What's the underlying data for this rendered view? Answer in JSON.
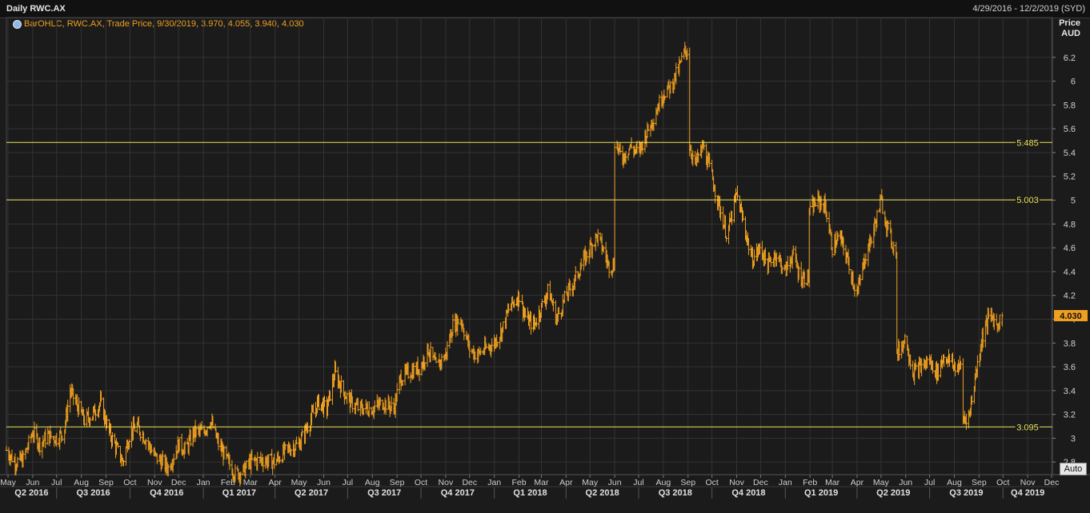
{
  "header": {
    "title": "Daily RWC.AX",
    "date_range": "4/29/2016 - 12/2/2019 (SYD)"
  },
  "legend": {
    "text": "BarOHLC, RWC.AX, Trade Price, 9/30/2019, 3.970, 4.055, 3.940, 4.030",
    "icon": "circle-icon"
  },
  "axis": {
    "title_line1": "Price",
    "title_line2": "AUD"
  },
  "auto_button": "Auto",
  "colors": {
    "background": "#1b1b1b",
    "series": "#f0a020",
    "levels": "#e8e25a",
    "grid": "#333333",
    "last_price_tag": "#f0a020"
  },
  "chart_data": {
    "type": "bar",
    "style": "OHLC",
    "symbol": "RWC.AX",
    "x_range": [
      "2016-04-29",
      "2019-12-02"
    ],
    "ylim": [
      2.6,
      6.4
    ],
    "y_ticks": [
      2.8,
      3,
      3.2,
      3.4,
      3.6,
      3.8,
      4,
      4.2,
      4.4,
      4.6,
      4.8,
      5,
      5.2,
      5.4,
      5.6,
      5.8,
      6,
      6.2
    ],
    "grid": true,
    "last_price": {
      "date": "2019-09-30",
      "open": 3.97,
      "high": 4.055,
      "low": 3.94,
      "close": 4.03,
      "label": "4.030"
    },
    "horizontal_lines": [
      {
        "value": 5.485,
        "label": "5.485"
      },
      {
        "value": 5.003,
        "label": "5.003"
      },
      {
        "value": 3.095,
        "label": "3.095"
      }
    ],
    "month_labels": [
      {
        "date": "2016-05-01",
        "label": "May"
      },
      {
        "date": "2016-06-01",
        "label": "Jun"
      },
      {
        "date": "2016-07-01",
        "label": "Jul"
      },
      {
        "date": "2016-08-01",
        "label": "Aug"
      },
      {
        "date": "2016-09-01",
        "label": "Sep"
      },
      {
        "date": "2016-10-01",
        "label": "Oct"
      },
      {
        "date": "2016-11-01",
        "label": "Nov"
      },
      {
        "date": "2016-12-01",
        "label": "Dec"
      },
      {
        "date": "2017-01-01",
        "label": "Jan"
      },
      {
        "date": "2017-02-01",
        "label": "Feb"
      },
      {
        "date": "2017-03-01",
        "label": "Mar"
      },
      {
        "date": "2017-04-01",
        "label": "Apr"
      },
      {
        "date": "2017-05-01",
        "label": "May"
      },
      {
        "date": "2017-06-01",
        "label": "Jun"
      },
      {
        "date": "2017-07-01",
        "label": "Jul"
      },
      {
        "date": "2017-08-01",
        "label": "Aug"
      },
      {
        "date": "2017-09-01",
        "label": "Sep"
      },
      {
        "date": "2017-10-01",
        "label": "Oct"
      },
      {
        "date": "2017-11-01",
        "label": "Nov"
      },
      {
        "date": "2017-12-01",
        "label": "Dec"
      },
      {
        "date": "2018-01-01",
        "label": "Jan"
      },
      {
        "date": "2018-02-01",
        "label": "Feb"
      },
      {
        "date": "2018-03-01",
        "label": "Mar"
      },
      {
        "date": "2018-04-01",
        "label": "Apr"
      },
      {
        "date": "2018-05-01",
        "label": "May"
      },
      {
        "date": "2018-06-01",
        "label": "Jun"
      },
      {
        "date": "2018-07-01",
        "label": "Jul"
      },
      {
        "date": "2018-08-01",
        "label": "Aug"
      },
      {
        "date": "2018-09-01",
        "label": "Sep"
      },
      {
        "date": "2018-10-01",
        "label": "Oct"
      },
      {
        "date": "2018-11-01",
        "label": "Nov"
      },
      {
        "date": "2018-12-01",
        "label": "Dec"
      },
      {
        "date": "2019-01-01",
        "label": "Jan"
      },
      {
        "date": "2019-02-01",
        "label": "Feb"
      },
      {
        "date": "2019-03-01",
        "label": "Mar"
      },
      {
        "date": "2019-04-01",
        "label": "Apr"
      },
      {
        "date": "2019-05-01",
        "label": "May"
      },
      {
        "date": "2019-06-01",
        "label": "Jun"
      },
      {
        "date": "2019-07-01",
        "label": "Jul"
      },
      {
        "date": "2019-08-01",
        "label": "Aug"
      },
      {
        "date": "2019-09-01",
        "label": "Sep"
      },
      {
        "date": "2019-10-01",
        "label": "Oct"
      },
      {
        "date": "2019-11-01",
        "label": "Nov"
      },
      {
        "date": "2019-12-01",
        "label": "Dec"
      }
    ],
    "quarter_labels": [
      {
        "start": "2016-04-01",
        "end": "2016-07-01",
        "label": "Q2 2016"
      },
      {
        "start": "2016-07-01",
        "end": "2016-10-01",
        "label": "Q3 2016"
      },
      {
        "start": "2016-10-01",
        "end": "2017-01-01",
        "label": "Q4 2016"
      },
      {
        "start": "2017-01-01",
        "end": "2017-04-01",
        "label": "Q1 2017"
      },
      {
        "start": "2017-04-01",
        "end": "2017-07-01",
        "label": "Q2 2017"
      },
      {
        "start": "2017-07-01",
        "end": "2017-10-01",
        "label": "Q3 2017"
      },
      {
        "start": "2017-10-01",
        "end": "2018-01-01",
        "label": "Q4 2017"
      },
      {
        "start": "2018-01-01",
        "end": "2018-04-01",
        "label": "Q1 2018"
      },
      {
        "start": "2018-04-01",
        "end": "2018-07-01",
        "label": "Q2 2018"
      },
      {
        "start": "2018-07-01",
        "end": "2018-10-01",
        "label": "Q3 2018"
      },
      {
        "start": "2018-10-01",
        "end": "2019-01-01",
        "label": "Q4 2018"
      },
      {
        "start": "2019-01-01",
        "end": "2019-04-01",
        "label": "Q1 2019"
      },
      {
        "start": "2019-04-01",
        "end": "2019-07-01",
        "label": "Q2 2019"
      },
      {
        "start": "2019-07-01",
        "end": "2019-10-01",
        "label": "Q3 2019"
      },
      {
        "start": "2019-10-01",
        "end": "2020-01-01",
        "label": "Q4 2019"
      }
    ],
    "price_path": [
      [
        "2016-04-29",
        2.9
      ],
      [
        "2016-05-10",
        2.8
      ],
      [
        "2016-05-20",
        2.82
      ],
      [
        "2016-06-01",
        3.05
      ],
      [
        "2016-06-10",
        2.95
      ],
      [
        "2016-06-20",
        3.02
      ],
      [
        "2016-07-01",
        3.0
      ],
      [
        "2016-07-10",
        3.05
      ],
      [
        "2016-07-18",
        3.4
      ],
      [
        "2016-07-25",
        3.3
      ],
      [
        "2016-08-05",
        3.15
      ],
      [
        "2016-08-15",
        3.2
      ],
      [
        "2016-08-25",
        3.3
      ],
      [
        "2016-09-05",
        3.05
      ],
      [
        "2016-09-15",
        2.9
      ],
      [
        "2016-09-22",
        2.8
      ],
      [
        "2016-10-01",
        3.05
      ],
      [
        "2016-10-10",
        3.1
      ],
      [
        "2016-10-20",
        3.0
      ],
      [
        "2016-11-01",
        2.85
      ],
      [
        "2016-11-10",
        2.8
      ],
      [
        "2016-11-18",
        2.75
      ],
      [
        "2016-12-01",
        2.95
      ],
      [
        "2016-12-10",
        2.9
      ],
      [
        "2016-12-20",
        3.05
      ],
      [
        "2017-01-01",
        3.05
      ],
      [
        "2017-01-10",
        3.15
      ],
      [
        "2017-01-20",
        2.95
      ],
      [
        "2017-02-01",
        2.8
      ],
      [
        "2017-02-10",
        2.7
      ],
      [
        "2017-02-20",
        2.72
      ],
      [
        "2017-03-01",
        2.8
      ],
      [
        "2017-03-15",
        2.82
      ],
      [
        "2017-04-01",
        2.8
      ],
      [
        "2017-04-15",
        2.9
      ],
      [
        "2017-05-01",
        2.95
      ],
      [
        "2017-05-15",
        3.15
      ],
      [
        "2017-05-25",
        3.3
      ],
      [
        "2017-06-05",
        3.25
      ],
      [
        "2017-06-15",
        3.55
      ],
      [
        "2017-06-25",
        3.4
      ],
      [
        "2017-07-05",
        3.3
      ],
      [
        "2017-07-15",
        3.25
      ],
      [
        "2017-08-01",
        3.25
      ],
      [
        "2017-08-15",
        3.3
      ],
      [
        "2017-08-28",
        3.25
      ],
      [
        "2017-09-05",
        3.5
      ],
      [
        "2017-09-15",
        3.55
      ],
      [
        "2017-10-01",
        3.6
      ],
      [
        "2017-10-10",
        3.75
      ],
      [
        "2017-10-20",
        3.6
      ],
      [
        "2017-11-01",
        3.7
      ],
      [
        "2017-11-10",
        3.95
      ],
      [
        "2017-11-20",
        4.0
      ],
      [
        "2017-12-01",
        3.75
      ],
      [
        "2017-12-10",
        3.7
      ],
      [
        "2018-01-01",
        3.8
      ],
      [
        "2018-01-10",
        3.9
      ],
      [
        "2018-01-20",
        4.1
      ],
      [
        "2018-02-01",
        4.2
      ],
      [
        "2018-02-10",
        4.0
      ],
      [
        "2018-02-20",
        3.95
      ],
      [
        "2018-03-01",
        4.1
      ],
      [
        "2018-03-10",
        4.25
      ],
      [
        "2018-03-20",
        4.0
      ],
      [
        "2018-04-01",
        4.2
      ],
      [
        "2018-04-10",
        4.3
      ],
      [
        "2018-04-20",
        4.45
      ],
      [
        "2018-05-01",
        4.6
      ],
      [
        "2018-05-10",
        4.7
      ],
      [
        "2018-05-20",
        4.55
      ],
      [
        "2018-05-24",
        4.45
      ],
      [
        "2018-06-01",
        5.5
      ],
      [
        "2018-06-10",
        5.35
      ],
      [
        "2018-06-20",
        5.45
      ],
      [
        "2018-07-01",
        5.4
      ],
      [
        "2018-07-10",
        5.55
      ],
      [
        "2018-07-20",
        5.7
      ],
      [
        "2018-08-01",
        5.9
      ],
      [
        "2018-08-10",
        5.95
      ],
      [
        "2018-08-20",
        6.1
      ],
      [
        "2018-08-28",
        6.25
      ],
      [
        "2018-09-01",
        5.5
      ],
      [
        "2018-09-10",
        5.3
      ],
      [
        "2018-09-20",
        5.45
      ],
      [
        "2018-10-01",
        5.2
      ],
      [
        "2018-10-10",
        4.95
      ],
      [
        "2018-10-20",
        4.7
      ],
      [
        "2018-11-01",
        5.05
      ],
      [
        "2018-11-10",
        4.8
      ],
      [
        "2018-11-20",
        4.5
      ],
      [
        "2018-12-01",
        4.6
      ],
      [
        "2018-12-10",
        4.45
      ],
      [
        "2018-12-20",
        4.55
      ],
      [
        "2019-01-01",
        4.4
      ],
      [
        "2019-01-10",
        4.55
      ],
      [
        "2019-01-20",
        4.35
      ],
      [
        "2019-02-01",
        4.9
      ],
      [
        "2019-02-10",
        5.0
      ],
      [
        "2019-02-20",
        4.95
      ],
      [
        "2019-03-01",
        4.6
      ],
      [
        "2019-03-10",
        4.7
      ],
      [
        "2019-03-20",
        4.5
      ],
      [
        "2019-04-01",
        4.2
      ],
      [
        "2019-04-10",
        4.5
      ],
      [
        "2019-04-20",
        4.7
      ],
      [
        "2019-05-01",
        5.0
      ],
      [
        "2019-05-10",
        4.75
      ],
      [
        "2019-05-17",
        4.6
      ],
      [
        "2019-05-21",
        3.7
      ],
      [
        "2019-06-01",
        3.85
      ],
      [
        "2019-06-10",
        3.55
      ],
      [
        "2019-06-20",
        3.6
      ],
      [
        "2019-07-01",
        3.65
      ],
      [
        "2019-07-10",
        3.55
      ],
      [
        "2019-07-20",
        3.7
      ],
      [
        "2019-08-01",
        3.6
      ],
      [
        "2019-08-10",
        3.15
      ],
      [
        "2019-08-20",
        3.2
      ],
      [
        "2019-08-28",
        3.55
      ],
      [
        "2019-09-05",
        3.85
      ],
      [
        "2019-09-15",
        4.05
      ],
      [
        "2019-09-23",
        3.95
      ],
      [
        "2019-09-30",
        4.03
      ]
    ]
  }
}
